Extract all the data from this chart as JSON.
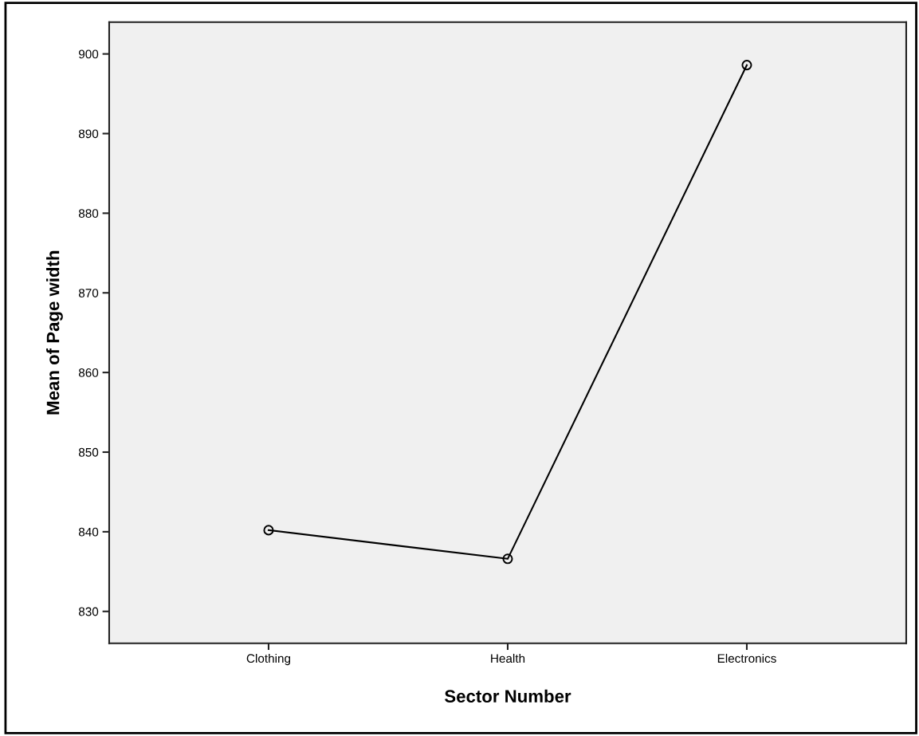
{
  "chart_data": {
    "type": "line",
    "xlabel": "Sector Number",
    "ylabel": "Mean of Page width",
    "categories": [
      "Clothing",
      "Health",
      "Electronics"
    ],
    "series": [
      {
        "color": "#000000",
        "values": [
          840.2,
          836.6,
          898.6
        ]
      }
    ],
    "ylim": [
      826,
      904
    ],
    "yticks": [
      830,
      840,
      850,
      860,
      870,
      880,
      890,
      900
    ],
    "marker": "circle",
    "line_style": "solid",
    "grid": false
  }
}
